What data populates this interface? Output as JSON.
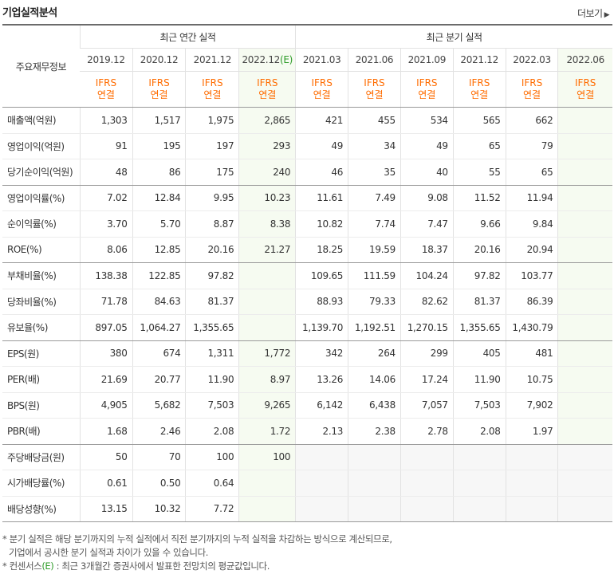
{
  "header": {
    "title": "기업실적분석",
    "more_label": "더보기",
    "more_icon": "chevron-right-icon"
  },
  "table": {
    "row_header_label": "주요재무정보",
    "annual_group": "최근 연간 실적",
    "quarter_group": "최근 분기 실적",
    "annual_periods": [
      "2019.12",
      "2020.12",
      "2021.12",
      "2022.12"
    ],
    "estimate_marker": "(E)",
    "quarter_periods": [
      "2021.03",
      "2021.06",
      "2021.09",
      "2021.12",
      "2022.03",
      "2022.06"
    ],
    "ifrs_line1": "IFRS",
    "ifrs_line2": "연결",
    "rows": [
      {
        "name": "매출액(억원)",
        "annual": [
          "1,303",
          "1,517",
          "1,975",
          "2,865"
        ],
        "quarter": [
          "421",
          "455",
          "534",
          "565",
          "662",
          ""
        ]
      },
      {
        "name": "영업이익(억원)",
        "annual": [
          "91",
          "195",
          "197",
          "293"
        ],
        "quarter": [
          "49",
          "34",
          "49",
          "65",
          "79",
          ""
        ]
      },
      {
        "name": "당기순이익(억원)",
        "annual": [
          "48",
          "86",
          "175",
          "240"
        ],
        "quarter": [
          "46",
          "35",
          "40",
          "55",
          "65",
          ""
        ]
      },
      {
        "name": "영업이익률(%)",
        "annual": [
          "7.02",
          "12.84",
          "9.95",
          "10.23"
        ],
        "quarter": [
          "11.61",
          "7.49",
          "9.08",
          "11.52",
          "11.94",
          ""
        ]
      },
      {
        "name": "순이익률(%)",
        "annual": [
          "3.70",
          "5.70",
          "8.87",
          "8.38"
        ],
        "quarter": [
          "10.82",
          "7.74",
          "7.47",
          "9.66",
          "9.84",
          ""
        ]
      },
      {
        "name": "ROE(%)",
        "annual": [
          "8.06",
          "12.85",
          "20.16",
          "21.27"
        ],
        "quarter": [
          "18.25",
          "19.59",
          "18.37",
          "20.16",
          "20.94",
          ""
        ]
      },
      {
        "name": "부채비율(%)",
        "annual": [
          "138.38",
          "122.85",
          "97.82",
          ""
        ],
        "quarter": [
          "109.65",
          "111.59",
          "104.24",
          "97.82",
          "103.77",
          ""
        ]
      },
      {
        "name": "당좌비율(%)",
        "annual": [
          "71.78",
          "84.63",
          "81.37",
          ""
        ],
        "quarter": [
          "88.93",
          "79.33",
          "82.62",
          "81.37",
          "86.39",
          ""
        ]
      },
      {
        "name": "유보율(%)",
        "annual": [
          "897.05",
          "1,064.27",
          "1,355.65",
          ""
        ],
        "quarter": [
          "1,139.70",
          "1,192.51",
          "1,270.15",
          "1,355.65",
          "1,430.79",
          ""
        ]
      },
      {
        "name": "EPS(원)",
        "annual": [
          "380",
          "674",
          "1,311",
          "1,772"
        ],
        "quarter": [
          "342",
          "264",
          "299",
          "405",
          "481",
          ""
        ]
      },
      {
        "name": "PER(배)",
        "annual": [
          "21.69",
          "20.77",
          "11.90",
          "8.97"
        ],
        "quarter": [
          "13.26",
          "14.06",
          "17.24",
          "11.90",
          "10.75",
          ""
        ]
      },
      {
        "name": "BPS(원)",
        "annual": [
          "4,905",
          "5,682",
          "7,503",
          "9,265"
        ],
        "quarter": [
          "6,142",
          "6,438",
          "7,057",
          "7,503",
          "7,902",
          ""
        ]
      },
      {
        "name": "PBR(배)",
        "annual": [
          "1.68",
          "2.46",
          "2.08",
          "1.72"
        ],
        "quarter": [
          "2.13",
          "2.38",
          "2.78",
          "2.08",
          "1.97",
          ""
        ]
      },
      {
        "name": "주당배당금(원)",
        "annual": [
          "50",
          "70",
          "100",
          "100"
        ],
        "quarter": [
          "",
          "",
          "",
          "",
          "",
          ""
        ]
      },
      {
        "name": "시가배당률(%)",
        "annual": [
          "0.61",
          "0.50",
          "0.64",
          ""
        ],
        "quarter": [
          "",
          "",
          "",
          "",
          "",
          ""
        ]
      },
      {
        "name": "배당성향(%)",
        "annual": [
          "13.15",
          "10.32",
          "7.72",
          ""
        ],
        "quarter": [
          "",
          "",
          "",
          "",
          "",
          ""
        ]
      }
    ]
  },
  "notes": {
    "line1": "* 분기 실적은 해당 분기까지의 누적 실적에서 직전 분기까지의 누적 실적을 차감하는 방식으로 계산되므로,",
    "line2": "기업에서 공시한 분기 실적과 차이가 있을 수 있습니다.",
    "line3_prefix": "* 컨센서스",
    "line3_marker": "(E)",
    "line3_suffix": ": 최근 3개월간 증권사에서 발표한 전망치의 평균값입니다."
  }
}
